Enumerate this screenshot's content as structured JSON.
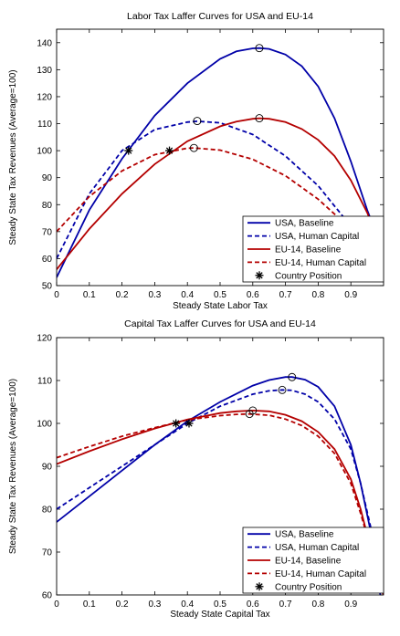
{
  "chart_data": [
    {
      "type": "line",
      "title": "Labor Tax Laffer Curves for USA and EU-14",
      "xlabel": "Steady State Labor Tax",
      "ylabel": "Steady State Tax Revenues (Average=100)",
      "xlim": [
        0,
        1
      ],
      "ylim": [
        50,
        145
      ],
      "xticks": [
        0,
        0.1,
        0.2,
        0.3,
        0.4,
        0.5,
        0.6,
        0.7,
        0.8,
        0.9
      ],
      "xtick_labels": [
        "0",
        "0.1",
        "0.2",
        "0.3",
        "0.4",
        "0.5",
        "0.6",
        "0.7",
        "0.8",
        "0.9"
      ],
      "yticks": [
        50,
        60,
        70,
        80,
        90,
        100,
        110,
        120,
        130,
        140
      ],
      "ytick_labels": [
        "50",
        "60",
        "70",
        "80",
        "90",
        "100",
        "110",
        "120",
        "130",
        "140"
      ],
      "grid": false,
      "legend_position": "bottom-right",
      "series": [
        {
          "name": "USA, Baseline",
          "color": "#0000a8",
          "dash": "solid",
          "x": [
            0,
            0.1,
            0.2,
            0.3,
            0.4,
            0.5,
            0.55,
            0.6,
            0.62,
            0.65,
            0.7,
            0.75,
            0.8,
            0.85,
            0.9,
            0.95,
            1.0
          ],
          "y": [
            53,
            78,
            97,
            113,
            125,
            134,
            136.8,
            137.9,
            138,
            137.7,
            135.6,
            131.3,
            123.8,
            112,
            96,
            78,
            62
          ],
          "peak": [
            0.62,
            138
          ]
        },
        {
          "name": "USA, Human Capital",
          "color": "#0000a8",
          "dash": "dashed",
          "x": [
            0,
            0.1,
            0.2,
            0.3,
            0.4,
            0.43,
            0.5,
            0.6,
            0.7,
            0.8,
            0.9,
            1.0
          ],
          "y": [
            60,
            84,
            100,
            107.8,
            110.6,
            110.9,
            110.3,
            106,
            98,
            87,
            72,
            53
          ],
          "peak": [
            0.43,
            111
          ]
        },
        {
          "name": "EU-14, Baseline",
          "color": "#b40000",
          "dash": "solid",
          "x": [
            0,
            0.1,
            0.2,
            0.3,
            0.4,
            0.5,
            0.55,
            0.6,
            0.62,
            0.65,
            0.7,
            0.75,
            0.8,
            0.85,
            0.9,
            0.95,
            1.0
          ],
          "y": [
            56,
            71,
            84,
            95,
            103.5,
            109,
            110.8,
            111.8,
            112,
            111.8,
            110.6,
            108,
            104,
            98,
            89,
            77,
            62
          ],
          "peak": [
            0.62,
            112
          ]
        },
        {
          "name": "EU-14, Human Capital",
          "color": "#b40000",
          "dash": "dashed",
          "x": [
            0,
            0.1,
            0.2,
            0.3,
            0.4,
            0.42,
            0.5,
            0.6,
            0.7,
            0.8,
            0.9,
            1.0
          ],
          "y": [
            70,
            83,
            92.5,
            98.5,
            100.9,
            101,
            100.2,
            96.8,
            90.7,
            82,
            71,
            57
          ],
          "peak": [
            0.42,
            101
          ]
        }
      ],
      "country_positions": [
        {
          "x": 0.22,
          "y": 100
        },
        {
          "x": 0.345,
          "y": 100
        }
      ],
      "legend": [
        {
          "label": "USA, Baseline",
          "color": "#0000a8",
          "dash": "solid"
        },
        {
          "label": "USA, Human Capital",
          "color": "#0000a8",
          "dash": "dashed"
        },
        {
          "label": "EU-14, Baseline",
          "color": "#b40000",
          "dash": "solid"
        },
        {
          "label": "EU-14, Human Capital",
          "color": "#b40000",
          "dash": "dashed"
        },
        {
          "label": "Country Position",
          "marker": "asterisk"
        }
      ]
    },
    {
      "type": "line",
      "title": "Capital Tax Laffer Curves for USA and EU-14",
      "xlabel": "Steady State Capital Tax",
      "ylabel": "Steady State Tax Revenues (Average=100)",
      "xlim": [
        0,
        1
      ],
      "ylim": [
        60,
        120
      ],
      "xticks": [
        0,
        0.1,
        0.2,
        0.3,
        0.4,
        0.5,
        0.6,
        0.7,
        0.8,
        0.9
      ],
      "xtick_labels": [
        "0",
        "0.1",
        "0.2",
        "0.3",
        "0.4",
        "0.5",
        "0.6",
        "0.7",
        "0.8",
        "0.9"
      ],
      "yticks": [
        60,
        70,
        80,
        90,
        100,
        110,
        120
      ],
      "ytick_labels": [
        "60",
        "70",
        "80",
        "90",
        "100",
        "110",
        "120"
      ],
      "grid": false,
      "legend_position": "bottom-right",
      "series": [
        {
          "name": "USA, Baseline",
          "color": "#0000a8",
          "dash": "solid",
          "x": [
            0,
            0.1,
            0.2,
            0.3,
            0.4,
            0.5,
            0.6,
            0.65,
            0.7,
            0.72,
            0.76,
            0.8,
            0.85,
            0.9,
            0.93,
            0.96,
            0.98,
            0.99
          ],
          "y": [
            77,
            83,
            89,
            95,
            100.5,
            105,
            108.8,
            110.1,
            110.8,
            110.8,
            110.2,
            108.5,
            104,
            95,
            86,
            75,
            66,
            60
          ],
          "peak": [
            0.72,
            110.8
          ]
        },
        {
          "name": "USA, Human Capital",
          "color": "#0000a8",
          "dash": "dashed",
          "x": [
            0,
            0.1,
            0.2,
            0.3,
            0.4,
            0.5,
            0.6,
            0.65,
            0.69,
            0.72,
            0.76,
            0.8,
            0.85,
            0.9,
            0.93,
            0.96,
            0.98,
            1.0
          ],
          "y": [
            80,
            85,
            90,
            95,
            100,
            104,
            106.8,
            107.6,
            107.8,
            107.7,
            106.8,
            105,
            101,
            94,
            86,
            76,
            67,
            60
          ],
          "peak": [
            0.69,
            107.8
          ]
        },
        {
          "name": "EU-14, Baseline",
          "color": "#b40000",
          "dash": "solid",
          "x": [
            0,
            0.1,
            0.2,
            0.3,
            0.4,
            0.5,
            0.55,
            0.6,
            0.65,
            0.7,
            0.75,
            0.8,
            0.85,
            0.9,
            0.93,
            0.96,
            0.98,
            1.0
          ],
          "y": [
            90.5,
            93.5,
            96.3,
            98.8,
            100.9,
            102.4,
            102.8,
            103,
            102.8,
            102,
            100.5,
            98,
            94,
            87,
            80,
            71,
            64,
            60
          ],
          "peak": [
            0.6,
            103
          ]
        },
        {
          "name": "EU-14, Human Capital",
          "color": "#b40000",
          "dash": "dashed",
          "x": [
            0,
            0.1,
            0.2,
            0.3,
            0.4,
            0.5,
            0.55,
            0.59,
            0.65,
            0.7,
            0.75,
            0.8,
            0.85,
            0.9,
            0.93,
            0.96,
            0.98,
            1.0
          ],
          "y": [
            92,
            94.6,
            97,
            99,
            100.8,
            101.8,
            102.1,
            102.2,
            101.9,
            101,
            99.5,
            97,
            93,
            86,
            79,
            71,
            65,
            61
          ],
          "peak": [
            0.59,
            102.2
          ]
        }
      ],
      "country_positions": [
        {
          "x": 0.365,
          "y": 100
        },
        {
          "x": 0.405,
          "y": 100
        }
      ],
      "legend": [
        {
          "label": "USA, Baseline",
          "color": "#0000a8",
          "dash": "solid"
        },
        {
          "label": "USA, Human Capital",
          "color": "#0000a8",
          "dash": "dashed"
        },
        {
          "label": "EU-14, Baseline",
          "color": "#b40000",
          "dash": "solid"
        },
        {
          "label": "EU-14, Human Capital",
          "color": "#b40000",
          "dash": "dashed"
        },
        {
          "label": "Country Position",
          "marker": "asterisk"
        }
      ]
    }
  ]
}
